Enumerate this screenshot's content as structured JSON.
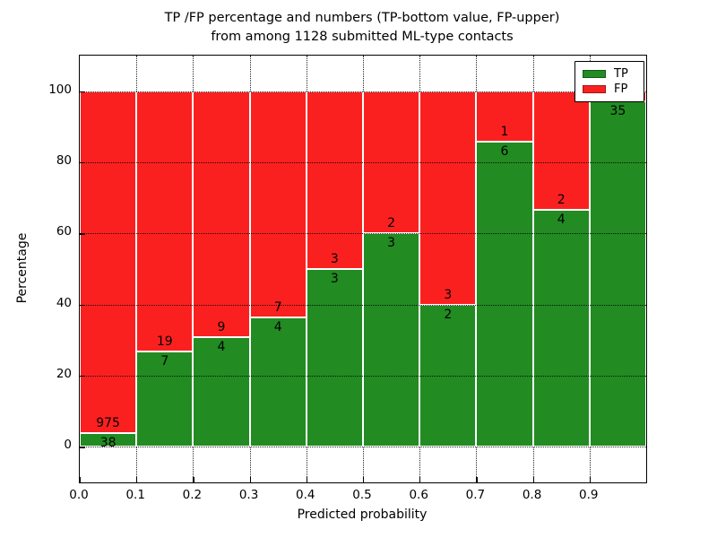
{
  "figure": {
    "title_line1": "TP /FP percentage and numbers (TP-bottom value, FP-upper)",
    "title_line2": "from among 1128 submitted ML-type contacts"
  },
  "chart_data": {
    "type": "bar",
    "subtype": "stacked-percentage-histogram",
    "title": "TP /FP percentage and numbers (TP-bottom value, FP-upper) from among 1128 submitted ML-type contacts",
    "xlabel": "Predicted probability",
    "ylabel": "Percentage",
    "total_contacts": 1128,
    "xlim": [
      0.0,
      1.0
    ],
    "ylim": [
      -10,
      110
    ],
    "bin_width": 0.1,
    "bin_starts": [
      0.0,
      0.1,
      0.2,
      0.3,
      0.4,
      0.5,
      0.6,
      0.7,
      0.8,
      0.9
    ],
    "xticks": [
      "0.0",
      "0.1",
      "0.2",
      "0.3",
      "0.4",
      "0.5",
      "0.6",
      "0.7",
      "0.8",
      "0.9"
    ],
    "yticks": [
      0,
      20,
      40,
      60,
      80,
      100
    ],
    "grid": "dotted",
    "bar_edge_color": "#ffffff",
    "series": [
      {
        "name": "TP",
        "color": "#228b22",
        "counts": [
          38,
          7,
          4,
          4,
          3,
          3,
          2,
          6,
          4,
          35
        ],
        "percent": [
          3.75,
          26.92,
          30.77,
          36.36,
          50.0,
          60.0,
          40.0,
          85.71,
          66.67,
          97.22
        ]
      },
      {
        "name": "FP",
        "color": "#fb2020",
        "counts": [
          975,
          19,
          9,
          7,
          3,
          2,
          3,
          1,
          2,
          1
        ],
        "percent": [
          96.25,
          73.08,
          69.23,
          63.64,
          50.0,
          40.0,
          60.0,
          14.29,
          33.33,
          2.78
        ]
      }
    ],
    "legend": {
      "position": "upper-right",
      "entries": [
        {
          "label": "TP",
          "color": "#228b22"
        },
        {
          "label": "FP",
          "color": "#fb2020"
        }
      ]
    }
  }
}
